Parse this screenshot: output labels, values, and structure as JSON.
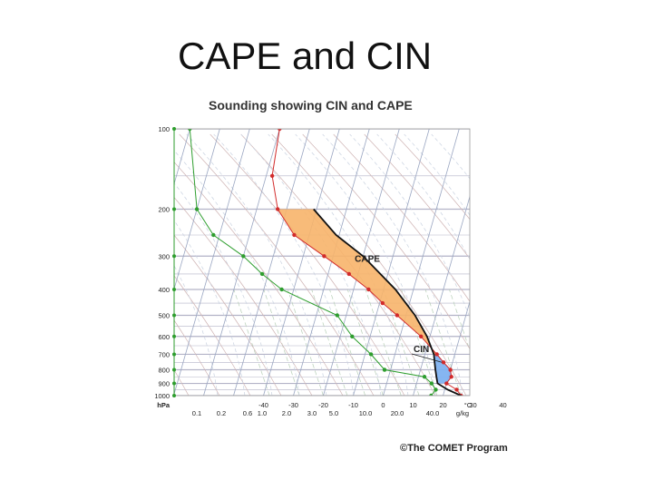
{
  "slide": {
    "title": "CAPE and CIN"
  },
  "credit": "©The COMET Program",
  "colors": {
    "isobar": "#b3b3c7",
    "isotherm": "#9aa6c2",
    "dry_adiabat": "#cfb4b4",
    "moist_adiabat": "#c9d2e0",
    "mixing_ratio": "#b7cfb7",
    "temperature": "#d22b2b",
    "dewpoint": "#2e9e2e",
    "parcel": "#111111",
    "cape_fill": "#f7b46a",
    "cin_fill": "#7fb2f0"
  },
  "chart_data": {
    "type": "skew-t",
    "title": "Sounding showing CIN and CAPE",
    "pressure_unit_label": "hPa",
    "temperature_unit_label": "°C",
    "mixing_ratio_unit_label": "g/kg",
    "pressure_ticks": [
      "100",
      "200",
      "300",
      "400",
      "500",
      "600",
      "700",
      "800",
      "900",
      "1000"
    ],
    "temperature_ticks": [
      "-40",
      "-30",
      "-20",
      "-10",
      "0",
      "10",
      "20",
      "30",
      "40"
    ],
    "mixing_ratio_ticks": [
      "0.1",
      "0.2",
      "0.6",
      "1.0",
      "2.0",
      "3.0",
      "5.0",
      "10.0",
      "20.0",
      "40.0"
    ],
    "temperature_profile": [
      {
        "p": 1000,
        "t": 26
      },
      {
        "p": 950,
        "t": 24
      },
      {
        "p": 900,
        "t": 20
      },
      {
        "p": 850,
        "t": 21
      },
      {
        "p": 800,
        "t": 20
      },
      {
        "p": 750,
        "t": 17
      },
      {
        "p": 700,
        "t": 14
      },
      {
        "p": 600,
        "t": 7
      },
      {
        "p": 500,
        "t": -3
      },
      {
        "p": 450,
        "t": -9
      },
      {
        "p": 400,
        "t": -15
      },
      {
        "p": 350,
        "t": -23
      },
      {
        "p": 300,
        "t": -33
      },
      {
        "p": 250,
        "t": -45
      },
      {
        "p": 200,
        "t": -53
      },
      {
        "p": 150,
        "t": -58
      },
      {
        "p": 100,
        "t": -60
      }
    ],
    "dewpoint_profile": [
      {
        "p": 1000,
        "t": 16
      },
      {
        "p": 950,
        "t": 17
      },
      {
        "p": 900,
        "t": 15
      },
      {
        "p": 850,
        "t": 12
      },
      {
        "p": 800,
        "t": -2
      },
      {
        "p": 700,
        "t": -8
      },
      {
        "p": 600,
        "t": -16
      },
      {
        "p": 500,
        "t": -23
      },
      {
        "p": 400,
        "t": -44
      },
      {
        "p": 350,
        "t": -52
      },
      {
        "p": 300,
        "t": -60
      },
      {
        "p": 250,
        "t": -72
      },
      {
        "p": 200,
        "t": -80
      },
      {
        "p": 100,
        "t": -90
      }
    ],
    "parcel_profile": [
      {
        "p": 1000,
        "t": 26
      },
      {
        "p": 950,
        "t": 21
      },
      {
        "p": 900,
        "t": 17
      },
      {
        "p": 850,
        "t": 16
      },
      {
        "p": 800,
        "t": 15
      },
      {
        "p": 750,
        "t": 14
      },
      {
        "p": 700,
        "t": 13
      },
      {
        "p": 600,
        "t": 9
      },
      {
        "p": 500,
        "t": 3
      },
      {
        "p": 400,
        "t": -6
      },
      {
        "p": 300,
        "t": -20
      },
      {
        "p": 250,
        "t": -31
      },
      {
        "p": 200,
        "t": -41
      }
    ],
    "cape": {
      "label": "CAPE",
      "p_bottom": 700,
      "p_top": 200
    },
    "cin": {
      "label": "CIN",
      "p_bottom": 900,
      "p_top": 700
    }
  }
}
